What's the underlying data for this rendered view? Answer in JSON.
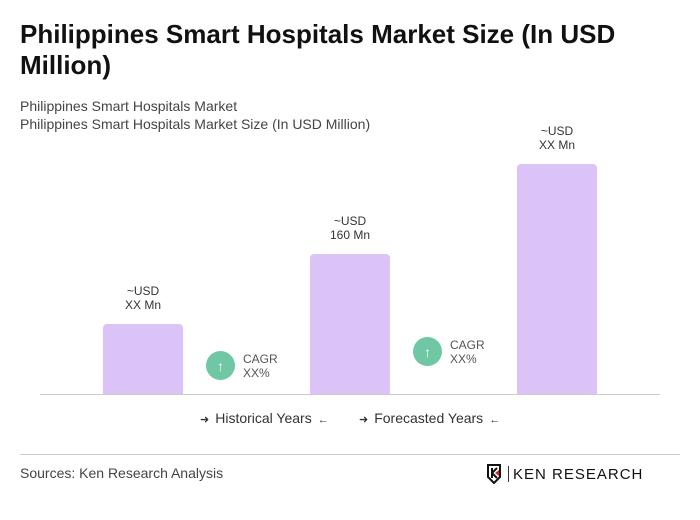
{
  "title": "Philippines Smart Hospitals Market Size (In USD Million)",
  "subtitle1": "Philippines Smart Hospitals Market",
  "subtitle2": "Philippines Smart Hospitals Market Size (In USD Million)",
  "chart_data": {
    "type": "bar",
    "bars": [
      {
        "label_line1": "~USD",
        "label_line2": "XX Mn",
        "value": null
      },
      {
        "label_line1": "~USD",
        "label_line2": "160 Mn",
        "value": 160
      },
      {
        "label_line1": "~USD",
        "label_line2": "XX Mn",
        "value": null
      }
    ],
    "cagr": [
      {
        "line1": "CAGR",
        "line2": "XX%"
      },
      {
        "line1": "CAGR",
        "line2": "XX%"
      }
    ],
    "legend": [
      "Historical Years",
      "Forecasted Years"
    ],
    "bar_color": "#dcc3f7",
    "cagr_color": "#6fc7a4"
  },
  "source": "Sources: Ken Research Analysis",
  "logo": "KEN RESEARCH"
}
